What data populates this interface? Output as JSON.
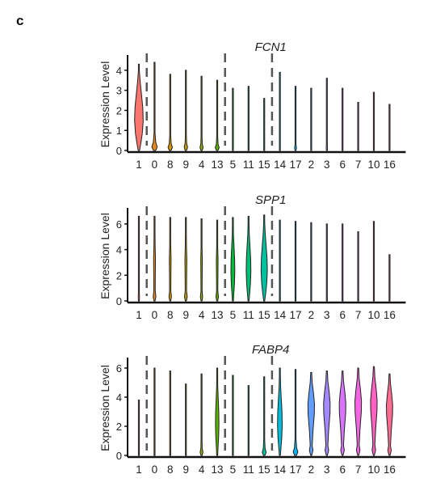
{
  "panel_letter": "c",
  "chart_data": [
    {
      "type": "violin",
      "title": "FCN1",
      "ylabel": "Expression Level",
      "ylim": [
        0,
        4.6
      ],
      "yticks": [
        0,
        1,
        2,
        3,
        4
      ],
      "categories": [
        "1",
        "0",
        "8",
        "9",
        "4",
        "13",
        "5",
        "11",
        "15",
        "14",
        "17",
        "2",
        "3",
        "6",
        "7",
        "10",
        "16"
      ],
      "max_values": [
        4.3,
        4.4,
        3.8,
        4.0,
        3.7,
        3.5,
        3.1,
        3.2,
        2.6,
        3.9,
        3.2,
        3.1,
        3.6,
        3.1,
        2.4,
        2.9,
        2.3
      ],
      "violin_max_width": [
        0.55,
        0.35,
        0.28,
        0.22,
        0.2,
        0.25,
        0.03,
        0.03,
        0.03,
        0.03,
        0.12,
        0.03,
        0.08,
        0.03,
        0.03,
        0.03,
        0.03
      ],
      "violin_shape": [
        "body",
        "base",
        "base",
        "base",
        "base",
        "base",
        "none",
        "none",
        "none",
        "none",
        "base",
        "none",
        "base",
        "none",
        "none",
        "none",
        "none"
      ],
      "dashed_separators_after_index": [
        0,
        5,
        8
      ],
      "colors": [
        "#F8766D",
        "#E7861B",
        "#D39200",
        "#BA9E00",
        "#93AA00",
        "#5BB300",
        "#00BA38",
        "#00BF74",
        "#00C19F",
        "#00BCD8",
        "#00B4EF",
        "#619CFF",
        "#A58AFF",
        "#D874FD",
        "#F564E3",
        "#FF61C3",
        "#FF6C91"
      ]
    },
    {
      "type": "violin",
      "title": "SPP1",
      "ylabel": "Expression Level",
      "ylim": [
        0,
        7
      ],
      "yticks": [
        0,
        2,
        4,
        6
      ],
      "categories": [
        "1",
        "0",
        "8",
        "9",
        "4",
        "13",
        "5",
        "11",
        "15",
        "14",
        "17",
        "2",
        "3",
        "6",
        "7",
        "10",
        "16"
      ],
      "max_values": [
        6.6,
        6.6,
        6.5,
        6.5,
        6.4,
        6.3,
        6.5,
        6.6,
        6.7,
        6.3,
        6.2,
        6.1,
        6.0,
        6.0,
        5.4,
        6.2,
        3.6
      ],
      "violin_max_width": [
        0.08,
        0.22,
        0.2,
        0.22,
        0.18,
        0.2,
        0.25,
        0.3,
        0.4,
        0.03,
        0.03,
        0.03,
        0.03,
        0.03,
        0.03,
        0.03,
        0.03
      ],
      "violin_shape": [
        "base",
        "spindle",
        "spindle",
        "spindle",
        "spindle",
        "spindle",
        "body",
        "body",
        "body",
        "none",
        "none",
        "none",
        "none",
        "none",
        "none",
        "none",
        "none"
      ],
      "dashed_separators_after_index": [
        0,
        5,
        8
      ],
      "colors": [
        "#F8766D",
        "#E7861B",
        "#D39200",
        "#BA9E00",
        "#93AA00",
        "#5BB300",
        "#00BA38",
        "#00BF74",
        "#00C19F",
        "#00BCD8",
        "#00B4EF",
        "#619CFF",
        "#A58AFF",
        "#D874FD",
        "#F564E3",
        "#FF61C3",
        "#FF6C91"
      ]
    },
    {
      "type": "violin",
      "title": "FABP4",
      "ylabel": "Expression Level",
      "ylim": [
        0,
        6.5
      ],
      "yticks": [
        0,
        2,
        4,
        6
      ],
      "categories": [
        "1",
        "0",
        "8",
        "9",
        "4",
        "13",
        "5",
        "11",
        "15",
        "14",
        "17",
        "2",
        "3",
        "6",
        "7",
        "10",
        "16"
      ],
      "max_values": [
        3.8,
        6.0,
        5.8,
        4.9,
        5.6,
        6.0,
        5.5,
        4.8,
        5.4,
        6.0,
        5.9,
        5.7,
        5.8,
        5.8,
        6.0,
        6.1,
        5.6
      ],
      "violin_max_width": [
        0.03,
        0.03,
        0.03,
        0.03,
        0.18,
        0.22,
        0.03,
        0.03,
        0.25,
        0.3,
        0.3,
        0.42,
        0.42,
        0.42,
        0.42,
        0.42,
        0.4
      ],
      "violin_shape": [
        "none",
        "none",
        "none",
        "none",
        "base",
        "body",
        "none",
        "none",
        "base",
        "body",
        "base",
        "wide",
        "wide",
        "wide",
        "wide",
        "wide",
        "wide"
      ],
      "dashed_separators_after_index": [
        0,
        5,
        8
      ],
      "colors": [
        "#F8766D",
        "#E7861B",
        "#D39200",
        "#BA9E00",
        "#93AA00",
        "#5BB300",
        "#00BA38",
        "#00BF74",
        "#00C19F",
        "#00BCD8",
        "#00B4EF",
        "#619CFF",
        "#A58AFF",
        "#D874FD",
        "#F564E3",
        "#FF61C3",
        "#FF6C91"
      ]
    }
  ]
}
